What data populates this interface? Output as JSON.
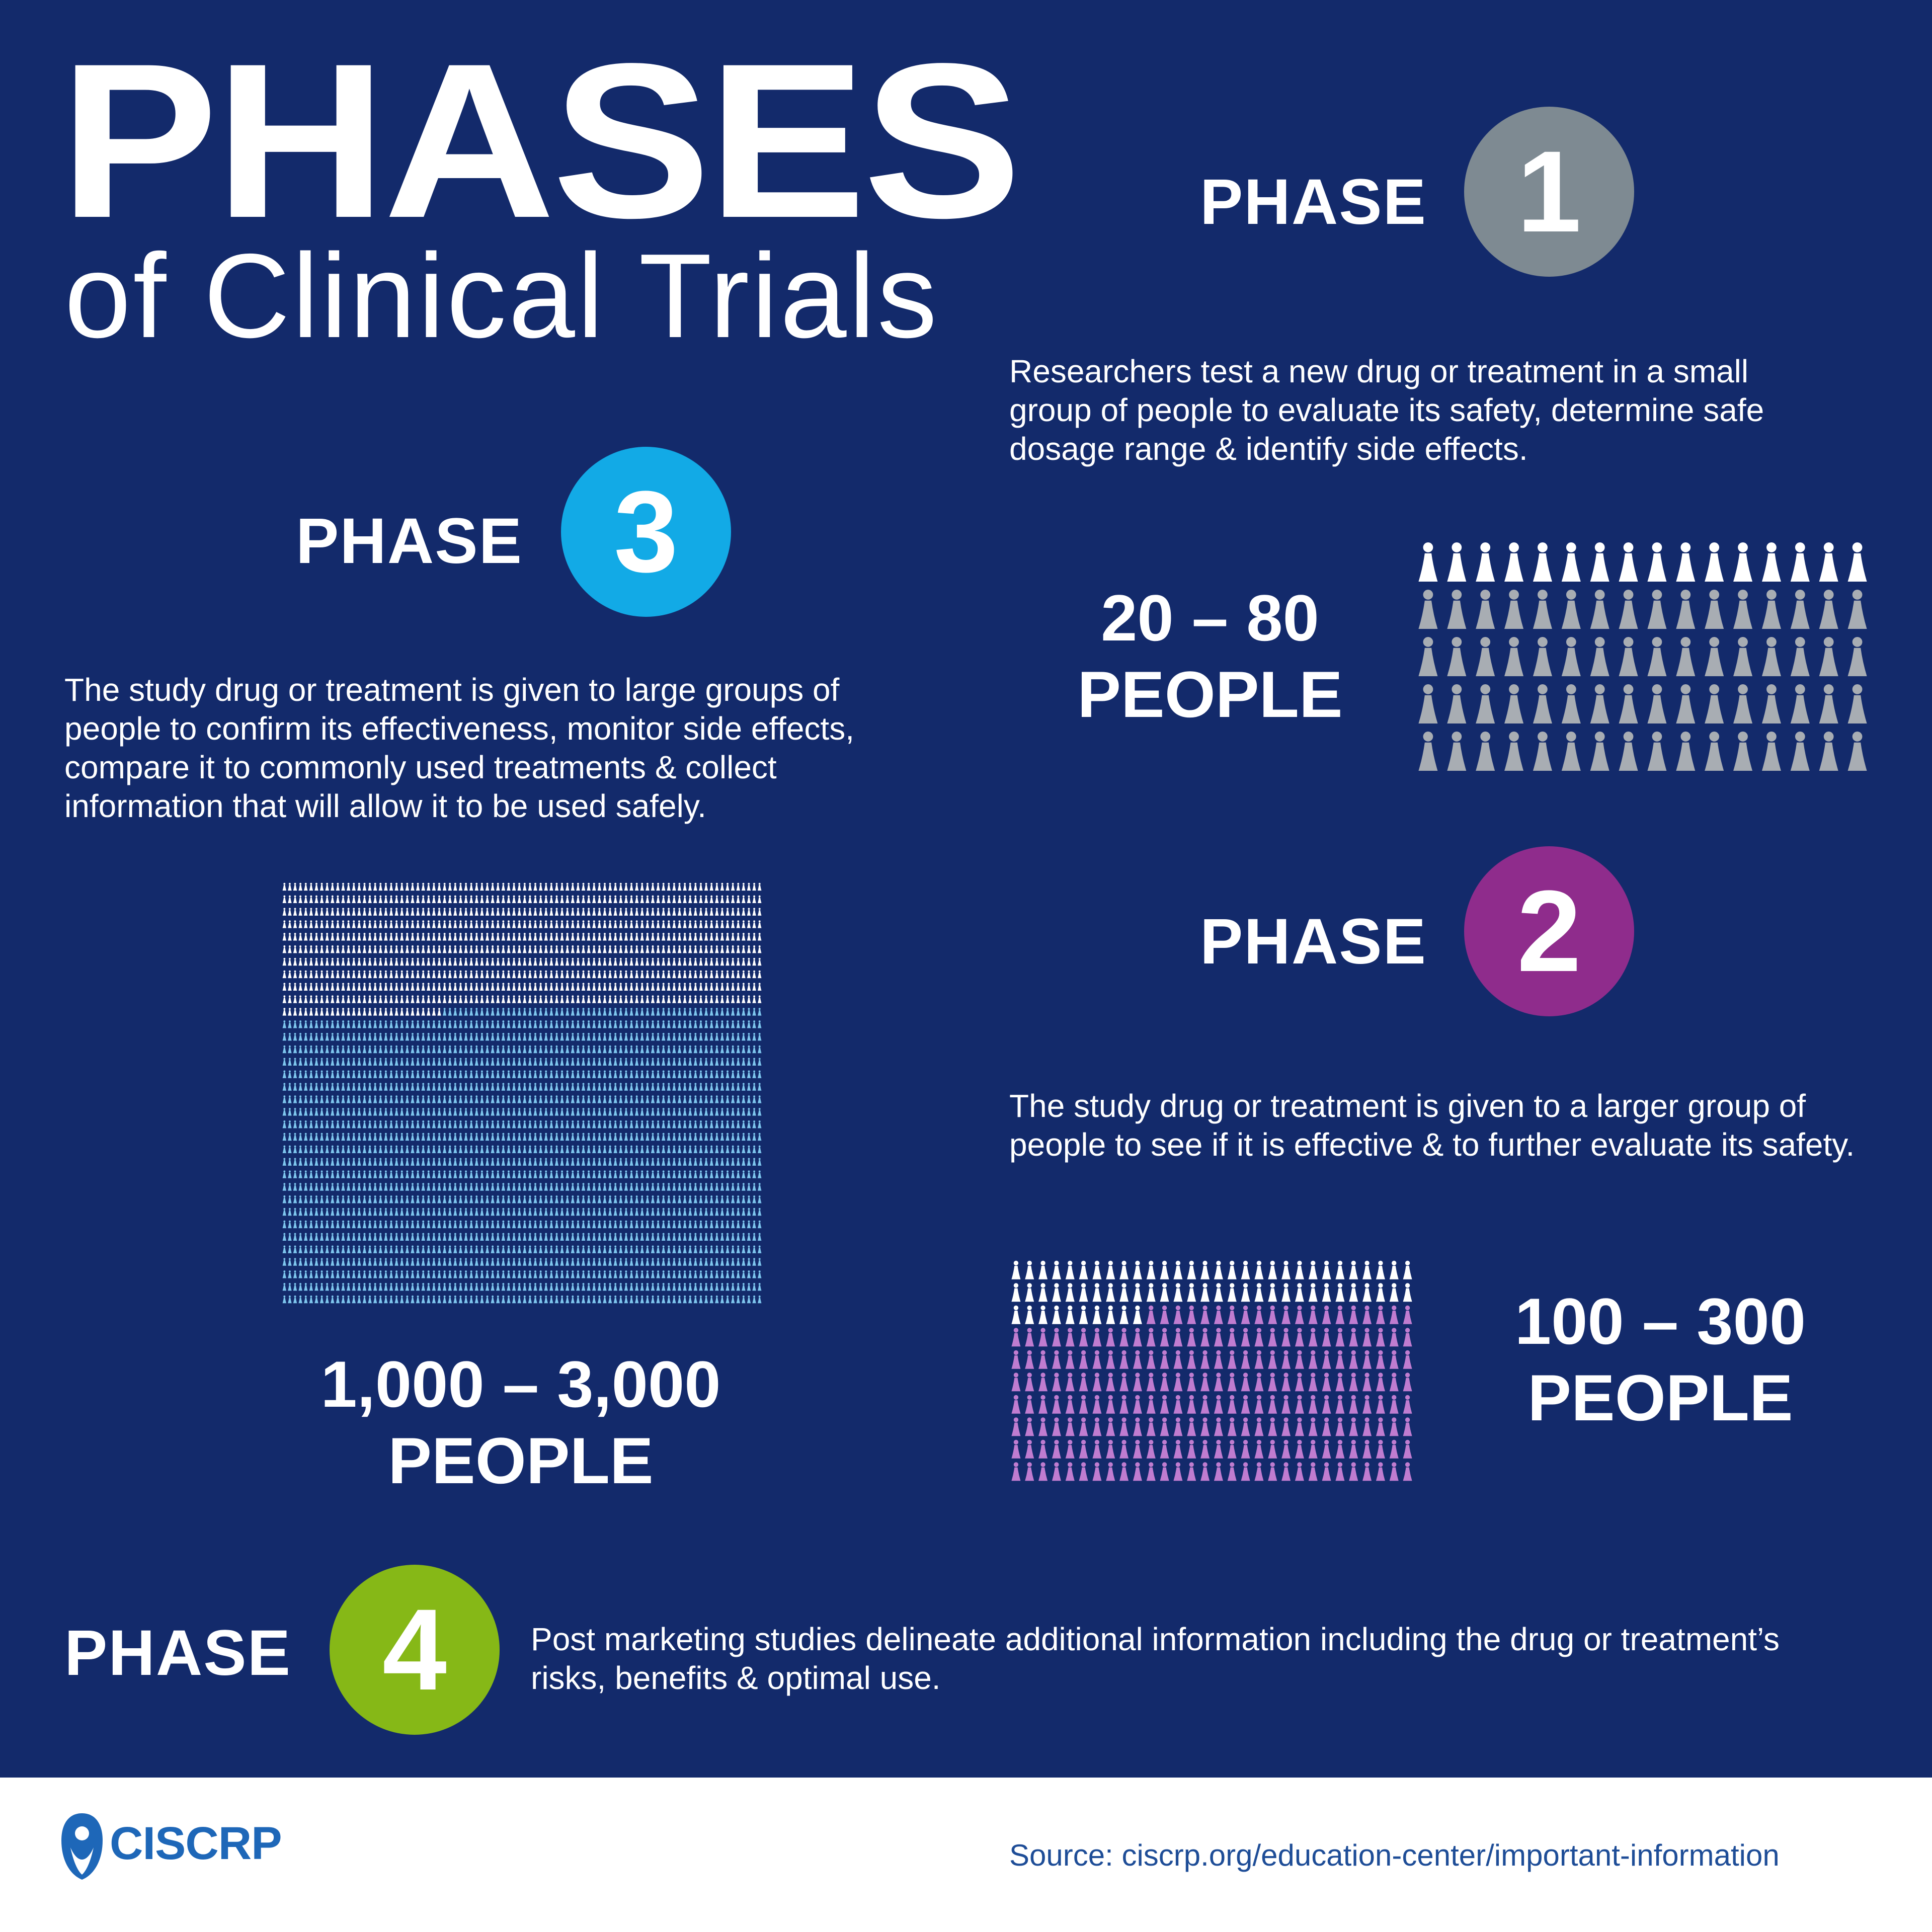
{
  "title": {
    "main": "PHASES",
    "sub": "of Clinical Trials"
  },
  "colors": {
    "background": "#132a6b",
    "phase1": "#7e8a92",
    "phase2": "#8f2c8c",
    "phase3": "#12aae6",
    "phase4": "#86b817",
    "grey_person": "#a8adb3",
    "purple_person": "#c07cd0",
    "blue_person": "#7ec6ee",
    "white_person": "#ffffff",
    "footer_bg": "#ffffff",
    "logo": "#1e67b8"
  },
  "phase1": {
    "label": "PHASE",
    "number": "1",
    "description": [
      "Researchers test a new drug or treatment in a small",
      "group of people to evaluate its safety, determine safe",
      "dosage range & identify side effects."
    ],
    "count_line1": "20 – 80",
    "count_line2": "PEOPLE",
    "icon": "person-icon"
  },
  "phase2": {
    "label": "PHASE",
    "number": "2",
    "description": [
      "The study drug or treatment is given to a larger group of",
      "people to see if it is effective & to further evaluate its safety."
    ],
    "count_line1": "100 – 300",
    "count_line2": "PEOPLE",
    "icon": "person-icon"
  },
  "phase3": {
    "label": "PHASE",
    "number": "3",
    "description": [
      "The study drug or treatment is given to large groups of",
      "people to confirm its effectiveness, monitor side effects,",
      "compare it to commonly used treatments & collect",
      "information that will allow it to be used safely."
    ],
    "count_line1": "1,000 – 3,000",
    "count_line2": "PEOPLE",
    "icon": "person-icon"
  },
  "phase4": {
    "label": "PHASE",
    "number": "4",
    "description": [
      "Post marketing studies delineate additional information including the drug or treatment’s",
      "risks, benefits & optimal use."
    ]
  },
  "footer": {
    "logo_text": "CISCRP",
    "logo_icon": "ciscrp-logo-icon",
    "source": "Source:  ciscrp.org/education-center/important-information"
  }
}
